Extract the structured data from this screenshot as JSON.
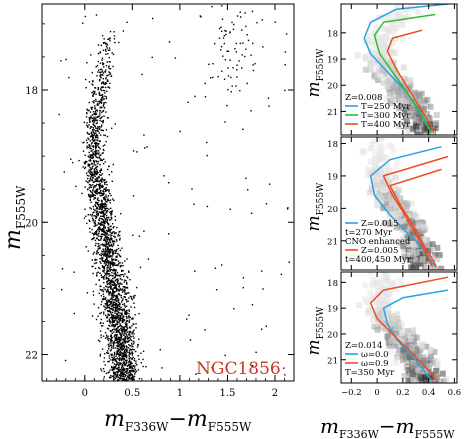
{
  "cluster_label": "NGC1856",
  "main_x_title": "m",
  "main_x_sub": "F336W",
  "main_x_minus": "−m",
  "main_x_sub2": "F555W",
  "main_y_title": "m",
  "main_y_sub": "F555W",
  "right_x_title": "m",
  "right_x_sub": "F336W",
  "right_x_minus": "−m",
  "right_x_sub2": "F555W",
  "colors": {
    "blue": "#29a3e0",
    "green": "#2dbf2d",
    "red": "#f04a22"
  },
  "chart_data": [
    {
      "type": "scatter",
      "panel": "main",
      "xlim": [
        -0.45,
        2.2
      ],
      "ylim": [
        22.4,
        16.7
      ],
      "y_inverted": true,
      "xticks": [
        "0",
        "0.5",
        "1",
        "1.5",
        "2"
      ],
      "xtick_values": [
        0,
        0.5,
        1,
        1.5,
        2
      ],
      "yticks": [
        "18",
        "20",
        "22"
      ],
      "ytick_values": [
        18,
        20,
        22
      ],
      "annotation": "NGC1856",
      "description_series": [
        {
          "name": "",
          "main_sequence_ridge": [
            [
              0.3,
              16.9
            ],
            [
              0.22,
              17.5
            ],
            [
              0.15,
              18.0
            ],
            [
              0.1,
              18.5
            ],
            [
              0.09,
              19.0
            ],
            [
              0.12,
              19.5
            ],
            [
              0.18,
              20.0
            ],
            [
              0.24,
              20.5
            ],
            [
              0.3,
              21.0
            ],
            [
              0.35,
              21.5
            ],
            [
              0.38,
              22.0
            ],
            [
              0.4,
              22.4
            ]
          ]
        },
        {
          "name": "",
          "red_clump": [
            [
              1.45,
              17.0
            ],
            [
              1.55,
              17.2
            ],
            [
              1.65,
              17.5
            ],
            [
              1.55,
              17.7
            ]
          ]
        }
      ]
    },
    {
      "type": "line",
      "panel": "top-right",
      "xlim": [
        -0.28,
        0.62
      ],
      "ylim": [
        21.9,
        16.9
      ],
      "yticks": [
        "18",
        "19",
        "20",
        "21"
      ],
      "legend": [
        "Z=0.008",
        "T=250 Myr",
        "T=300 Myr",
        "T=400 Myr"
      ],
      "series": [
        {
          "name": "T=250 Myr",
          "color": "blue",
          "x": [
            0.55,
            0.15,
            -0.05,
            -0.1,
            -0.05,
            0.1,
            0.22,
            0.3,
            0.36,
            0.42
          ],
          "y": [
            16.9,
            17.1,
            17.6,
            18.2,
            18.8,
            19.6,
            20.2,
            20.8,
            21.3,
            21.8
          ]
        },
        {
          "name": "T=300 Myr",
          "color": "green",
          "x": [
            0.45,
            0.05,
            -0.02,
            0.02,
            0.15,
            0.25,
            0.32,
            0.38,
            0.42
          ],
          "y": [
            17.3,
            17.6,
            18.1,
            18.8,
            19.7,
            20.4,
            20.9,
            21.4,
            21.8
          ]
        },
        {
          "name": "T=400 Myr",
          "color": "red",
          "x": [
            0.35,
            0.12,
            0.08,
            0.15,
            0.24,
            0.3,
            0.35,
            0.4,
            0.44
          ],
          "y": [
            17.9,
            18.2,
            18.7,
            19.4,
            20.1,
            20.6,
            21.0,
            21.4,
            21.8
          ]
        }
      ]
    },
    {
      "type": "line",
      "panel": "middle-right",
      "xlim": [
        -0.28,
        0.62
      ],
      "ylim": [
        21.9,
        17.8
      ],
      "yticks": [
        "18",
        "19",
        "20",
        "21"
      ],
      "legend": [
        "Z=0.015",
        "t=270 Myr",
        "CNO enhanced",
        "Z=0.005",
        "t=400,450 Myr"
      ],
      "series": [
        {
          "name": "Z=0.015 t=270 Myr",
          "color": "blue",
          "x": [
            0.5,
            0.1,
            -0.05,
            -0.02,
            0.1,
            0.22,
            0.3,
            0.38,
            0.45
          ],
          "y": [
            18.1,
            18.5,
            19.0,
            19.6,
            20.2,
            20.7,
            21.0,
            21.4,
            21.8
          ]
        },
        {
          "name": "Z=0.005 t=400 Myr",
          "color": "red",
          "x": [
            0.55,
            0.05,
            0.12,
            0.2,
            0.27,
            0.33,
            0.38,
            0.43
          ],
          "y": [
            18.4,
            19.0,
            19.6,
            20.1,
            20.6,
            21.0,
            21.4,
            21.8
          ]
        },
        {
          "name": "Z=0.005 t=450 Myr",
          "color": "red",
          "x": [
            0.5,
            0.1,
            0.18,
            0.26,
            0.32,
            0.37,
            0.42,
            0.46
          ],
          "y": [
            18.8,
            19.3,
            19.9,
            20.4,
            20.8,
            21.2,
            21.5,
            21.8
          ]
        }
      ]
    },
    {
      "type": "line",
      "panel": "bottom-right",
      "xlim": [
        -0.28,
        0.62
      ],
      "ylim": [
        21.9,
        17.6
      ],
      "xticks": [
        "−0.2",
        "0",
        "0.2",
        "0.4",
        "0.6"
      ],
      "xtick_values": [
        -0.2,
        0,
        0.2,
        0.4,
        0.6
      ],
      "yticks": [
        "18",
        "19",
        "20",
        "21"
      ],
      "legend": [
        "Z=0.014",
        "ω=0.0",
        "ω=0.9",
        "T=350 Myr"
      ],
      "series": [
        {
          "name": "ω=0.0",
          "color": "blue",
          "x": [
            0.55,
            0.2,
            0.05,
            0.08,
            0.15,
            0.24,
            0.3,
            0.36,
            0.42
          ],
          "y": [
            18.3,
            18.6,
            19.0,
            19.6,
            20.2,
            20.7,
            21.0,
            21.4,
            21.8
          ]
        },
        {
          "name": "ω=0.9",
          "color": "red",
          "x": [
            0.55,
            0.05,
            -0.05,
            0.0,
            0.12,
            0.22,
            0.3,
            0.38,
            0.46
          ],
          "y": [
            17.8,
            18.3,
            18.8,
            19.4,
            20.0,
            20.5,
            20.9,
            21.3,
            21.8
          ]
        }
      ]
    }
  ],
  "right_panels": [
    {
      "legend": [
        {
          "text": "Z=0.008",
          "color": ""
        },
        {
          "text": "T=250 Myr",
          "color": "blue"
        },
        {
          "text": "T=300 Myr",
          "color": "green"
        },
        {
          "text": "T=400 Myr",
          "color": "red"
        }
      ]
    },
    {
      "legend": [
        {
          "text": "Z=0.015",
          "color": "blue"
        },
        {
          "text": "t=270 Myr",
          "color": ""
        },
        {
          "text": "CNO enhanced",
          "color": ""
        },
        {
          "text": "Z=0.005",
          "color": "red"
        },
        {
          "text": "t=400,450 Myr",
          "color": ""
        }
      ]
    },
    {
      "legend": [
        {
          "text": "Z=0.014",
          "color": ""
        },
        {
          "text": "ω=0.0",
          "color": "blue"
        },
        {
          "text": "ω=0.9",
          "color": "red"
        },
        {
          "text": "T=350 Myr",
          "color": ""
        }
      ]
    }
  ]
}
